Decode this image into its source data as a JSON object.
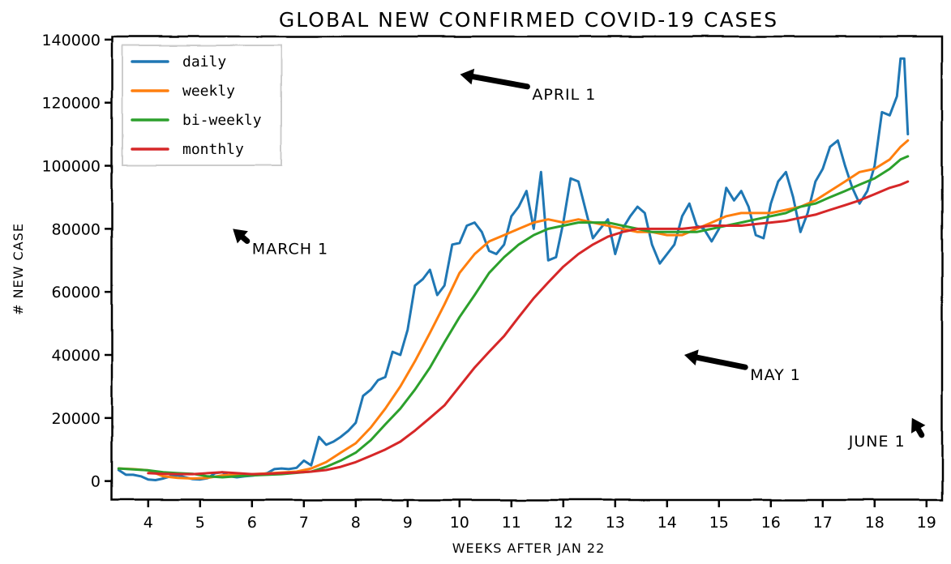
{
  "chart_data": {
    "type": "line",
    "title": "GLOBAL NEW CONFIRMED COVID-19 CASES",
    "xlabel": "WEEKS AFTER JAN 22",
    "ylabel": "# NEW CASE",
    "xlim": [
      3.3,
      19.3
    ],
    "ylim": [
      -6000,
      141000
    ],
    "xticks": [
      4,
      5,
      6,
      7,
      8,
      9,
      10,
      11,
      12,
      13,
      14,
      15,
      16,
      17,
      18,
      19
    ],
    "yticks": [
      0,
      20000,
      40000,
      60000,
      80000,
      100000,
      120000,
      140000
    ],
    "grid": false,
    "legend": "top-left",
    "style": "xkcd",
    "series": [
      {
        "name": "daily",
        "color": "#1f77b4",
        "x": [
          3.43,
          3.57,
          3.71,
          3.86,
          4.0,
          4.14,
          4.29,
          4.43,
          4.57,
          4.71,
          4.86,
          5.0,
          5.14,
          5.29,
          5.43,
          5.57,
          5.71,
          5.86,
          6.0,
          6.14,
          6.29,
          6.43,
          6.57,
          6.71,
          6.86,
          7.0,
          7.14,
          7.29,
          7.43,
          7.57,
          7.71,
          7.86,
          8.0,
          8.14,
          8.29,
          8.43,
          8.57,
          8.71,
          8.86,
          9.0,
          9.14,
          9.29,
          9.43,
          9.57,
          9.71,
          9.86,
          10.0,
          10.14,
          10.29,
          10.43,
          10.57,
          10.71,
          10.86,
          11.0,
          11.14,
          11.29,
          11.43,
          11.57,
          11.71,
          11.86,
          12.0,
          12.14,
          12.29,
          12.43,
          12.57,
          12.71,
          12.86,
          13.0,
          13.14,
          13.29,
          13.43,
          13.57,
          13.71,
          13.86,
          14.0,
          14.14,
          14.29,
          14.43,
          14.57,
          14.71,
          14.86,
          15.0,
          15.14,
          15.29,
          15.43,
          15.57,
          15.71,
          15.86,
          16.0,
          16.14,
          16.29,
          16.43,
          16.57,
          16.71,
          16.86,
          17.0,
          17.14,
          17.29,
          17.43,
          17.57,
          17.71,
          17.86,
          18.0,
          18.14,
          18.29,
          18.43,
          18.5,
          18.57,
          18.64
        ],
        "values": [
          3500,
          2000,
          2000,
          1500,
          500,
          300,
          800,
          1500,
          1800,
          1200,
          600,
          500,
          900,
          2500,
          2800,
          1500,
          1200,
          1500,
          1700,
          2000,
          2500,
          3800,
          4000,
          3800,
          4200,
          6500,
          5000,
          14000,
          11500,
          12500,
          14000,
          16000,
          18500,
          27000,
          29000,
          32000,
          33000,
          41000,
          40000,
          48000,
          62000,
          64000,
          67000,
          59000,
          62000,
          75000,
          75500,
          81000,
          82000,
          79000,
          73000,
          72000,
          75000,
          84000,
          87000,
          92000,
          80000,
          98000,
          70000,
          71000,
          82000,
          96000,
          95000,
          86000,
          77000,
          80000,
          83000,
          72000,
          80000,
          84000,
          87000,
          85000,
          75000,
          69000,
          72000,
          75000,
          84000,
          88000,
          81000,
          80000,
          76000,
          80000,
          93000,
          89000,
          92000,
          87000,
          78000,
          77000,
          88000,
          95000,
          98000,
          90000,
          79000,
          85000,
          95000,
          99000,
          106000,
          108000,
          100000,
          93000,
          88000,
          92000,
          100000,
          117000,
          116000,
          122000,
          134000,
          134000,
          110000
        ]
      },
      {
        "name": "weekly",
        "color": "#ff7f0e",
        "x": [
          3.43,
          3.71,
          4.0,
          4.29,
          4.57,
          4.86,
          5.14,
          5.43,
          5.71,
          6.0,
          6.29,
          6.57,
          6.86,
          7.14,
          7.43,
          7.71,
          8.0,
          8.29,
          8.57,
          8.86,
          9.14,
          9.43,
          9.71,
          10.0,
          10.29,
          10.57,
          10.86,
          11.14,
          11.43,
          11.71,
          12.0,
          12.29,
          12.57,
          12.86,
          13.14,
          13.43,
          13.71,
          14.0,
          14.29,
          14.57,
          14.86,
          15.14,
          15.43,
          15.71,
          16.0,
          16.29,
          16.57,
          16.86,
          17.14,
          17.43,
          17.71,
          18.0,
          18.29,
          18.5,
          18.64
        ],
        "values": [
          4000,
          3800,
          3400,
          1500,
          1000,
          800,
          1000,
          1800,
          2000,
          2200,
          2400,
          2700,
          3000,
          4000,
          6000,
          9000,
          12000,
          17000,
          23000,
          30000,
          38000,
          47000,
          56000,
          66000,
          72000,
          76000,
          78000,
          80000,
          82000,
          83000,
          82000,
          83000,
          82000,
          81000,
          80000,
          79000,
          79000,
          78000,
          78000,
          80000,
          82000,
          84000,
          85000,
          85000,
          85000,
          86000,
          87000,
          89000,
          92000,
          95000,
          98000,
          99000,
          102000,
          106000,
          108000
        ]
      },
      {
        "name": "bi-weekly",
        "color": "#2ca02c",
        "x": [
          3.43,
          3.71,
          4.0,
          4.29,
          4.57,
          4.86,
          5.14,
          5.43,
          5.71,
          6.0,
          6.29,
          6.57,
          6.86,
          7.14,
          7.43,
          7.71,
          8.0,
          8.29,
          8.57,
          8.86,
          9.14,
          9.43,
          9.71,
          10.0,
          10.29,
          10.57,
          10.86,
          11.14,
          11.43,
          11.71,
          12.0,
          12.29,
          12.57,
          12.86,
          13.14,
          13.43,
          13.71,
          14.0,
          14.29,
          14.57,
          14.86,
          15.14,
          15.43,
          15.71,
          16.0,
          16.29,
          16.57,
          16.86,
          17.14,
          17.43,
          17.71,
          18.0,
          18.29,
          18.5,
          18.64
        ],
        "values": [
          4000,
          3700,
          3400,
          2800,
          2500,
          2300,
          1500,
          1200,
          1500,
          1800,
          2000,
          2200,
          2600,
          3000,
          4500,
          6500,
          9000,
          13000,
          18000,
          23000,
          29000,
          36000,
          44000,
          52000,
          59000,
          66000,
          71000,
          75000,
          78000,
          80000,
          81000,
          82000,
          82000,
          82000,
          81000,
          80000,
          79000,
          79000,
          79000,
          79000,
          80000,
          81000,
          82000,
          83000,
          84000,
          85000,
          87000,
          88000,
          90000,
          92000,
          94000,
          96000,
          99000,
          102000,
          103000
        ]
      },
      {
        "name": "monthly",
        "color": "#d62728",
        "x": [
          4.0,
          4.29,
          4.57,
          4.86,
          5.14,
          5.43,
          5.71,
          6.0,
          6.29,
          6.57,
          6.86,
          7.14,
          7.43,
          7.71,
          8.0,
          8.29,
          8.57,
          8.86,
          9.14,
          9.43,
          9.71,
          10.0,
          10.29,
          10.57,
          10.86,
          11.14,
          11.43,
          11.71,
          12.0,
          12.29,
          12.57,
          12.86,
          13.14,
          13.43,
          13.71,
          14.0,
          14.29,
          14.57,
          14.86,
          15.14,
          15.43,
          15.71,
          16.0,
          16.29,
          16.57,
          16.86,
          17.14,
          17.43,
          17.71,
          18.0,
          18.29,
          18.5,
          18.64
        ],
        "values": [
          2500,
          2300,
          2200,
          2200,
          2500,
          2800,
          2500,
          2200,
          2300,
          2500,
          2700,
          3000,
          3500,
          4500,
          6000,
          8000,
          10000,
          12500,
          16000,
          20000,
          24000,
          30000,
          36000,
          41000,
          46000,
          52000,
          58000,
          63000,
          68000,
          72000,
          75000,
          77500,
          79000,
          80000,
          80000,
          80000,
          80000,
          80500,
          81000,
          81000,
          81000,
          81500,
          82000,
          82500,
          83500,
          84500,
          86000,
          87500,
          89000,
          91000,
          93000,
          94000,
          95000
        ]
      }
    ],
    "vlines": [
      {
        "x": 5.6,
        "label": "MARCH 1",
        "color": "#808080"
      },
      {
        "x": 9.98,
        "label": "APRIL 1",
        "color": "#808080"
      },
      {
        "x": 14.3,
        "label": "MAY 1",
        "color": "#808080"
      },
      {
        "x": 18.75,
        "label": "JUNE 1",
        "color": "#808080"
      }
    ],
    "annotations": [
      {
        "text": "MARCH 1",
        "arrow_to": [
          5.6,
          80000
        ],
        "text_at": [
          6.0,
          72000
        ]
      },
      {
        "text": "APRIL 1",
        "arrow_to": [
          9.98,
          129000
        ],
        "text_at": [
          11.4,
          121000
        ]
      },
      {
        "text": "MAY 1",
        "arrow_to": [
          14.3,
          40000
        ],
        "text_at": [
          15.6,
          32000
        ]
      },
      {
        "text": "JUNE 1",
        "arrow_to": [
          18.75,
          20000
        ],
        "text_at": [
          17.5,
          11000
        ]
      }
    ]
  }
}
